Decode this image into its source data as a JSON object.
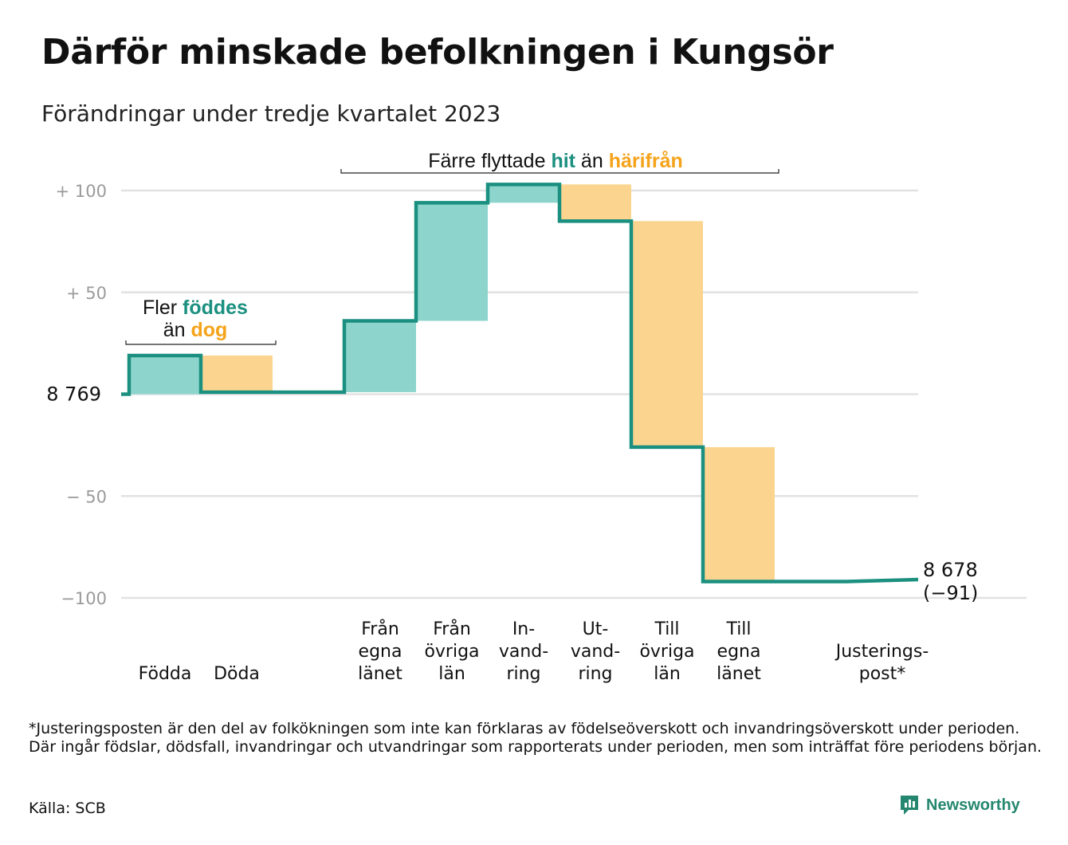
{
  "title": "Därför minskade befolkningen i Kungsör",
  "subtitle": "Förändringar under tredje kvartalet 2023",
  "colors": {
    "inflow": "#8dd5cc",
    "outflow": "#fbd590",
    "line": "#1b9080",
    "grid": "#e2e2e2",
    "teal_text": "#1b9080",
    "orange_text": "#f5a31a"
  },
  "chart_data": {
    "type": "waterfall",
    "baseline_label": "8  769",
    "y_ticks": [
      {
        "value": 100,
        "label": "+  100"
      },
      {
        "value": 50,
        "label": "+  50"
      },
      {
        "value": -50,
        "label": "−  50"
      },
      {
        "value": -100,
        "label": "−100"
      }
    ],
    "ylim": [
      -100,
      103
    ],
    "steps": [
      {
        "category": [
          "Födda"
        ],
        "value": 19,
        "kind": "in"
      },
      {
        "category": [
          "Döda"
        ],
        "value": -18,
        "kind": "out"
      },
      {
        "category": [
          ""
        ],
        "value": 0,
        "kind": "none"
      },
      {
        "category": [
          "Från",
          "egna",
          "länet"
        ],
        "value": 35,
        "kind": "in"
      },
      {
        "category": [
          "Från",
          "övriga",
          "län"
        ],
        "value": 58,
        "kind": "in"
      },
      {
        "category": [
          "In-",
          "vand-",
          "ring"
        ],
        "value": 9,
        "kind": "in"
      },
      {
        "category": [
          "Ut-",
          "vand-",
          "ring"
        ],
        "value": -18,
        "kind": "out"
      },
      {
        "category": [
          "Till",
          "övriga",
          "län"
        ],
        "value": -111,
        "kind": "out"
      },
      {
        "category": [
          "Till",
          "egna",
          "länet"
        ],
        "value": -66,
        "kind": "out"
      },
      {
        "category": [
          ""
        ],
        "value": 0,
        "kind": "none"
      },
      {
        "category": [
          "Justerings-",
          "post*"
        ],
        "value": 1,
        "kind": "line"
      }
    ],
    "end_value_label": "8 678",
    "end_change_label": "(−91)",
    "annotation_births": {
      "line1": "Fler",
      "hl_in": "föddes",
      "line2": "än",
      "hl_out": "dog"
    },
    "annotation_moves": {
      "text": "Färre flyttade",
      "hl_in": "hit",
      "mid": "än",
      "hl_out": "härifrån"
    }
  },
  "footnote": "*Justeringsposten är den del av folkökningen som inte kan förklaras av födelseöverskott och invandringsöverskott under perioden. Där ingår födslar, dödsfall, invandringar och utvandringar som rapporterats under perioden, men som inträffat före periodens början.",
  "source": "Källa: SCB",
  "brand": {
    "name": "Newsworthy",
    "icon": "newsworthy-logo-icon"
  }
}
